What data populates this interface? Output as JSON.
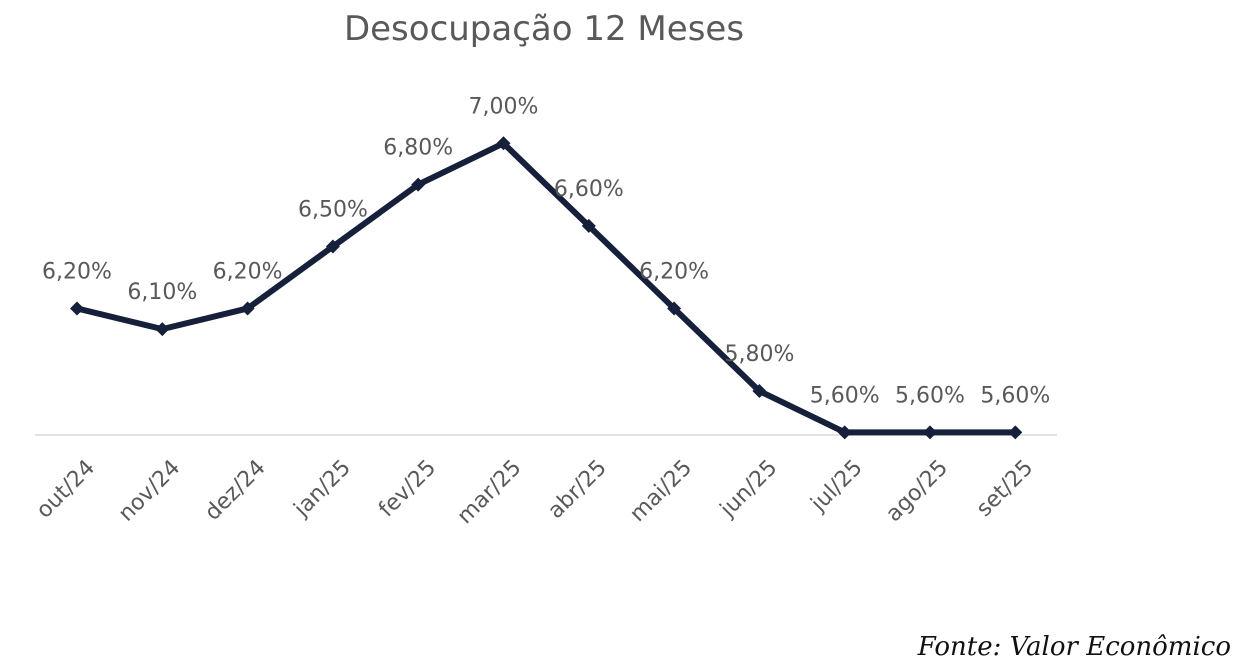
{
  "chart_data": {
    "type": "line",
    "title": "Desocupação 12 Meses",
    "xlabel": "",
    "ylabel": "",
    "categories": [
      "out/24",
      "nov/24",
      "dez/24",
      "jan/25",
      "fev/25",
      "mar/25",
      "abr/25",
      "mai/25",
      "jun/25",
      "jul/25",
      "ago/25",
      "set/25"
    ],
    "series": [
      {
        "values": [
          6.2,
          6.1,
          6.2,
          6.5,
          6.8,
          7.0,
          6.6,
          6.2,
          5.8,
          5.6,
          5.6,
          5.6
        ],
        "labels": [
          "6,20%",
          "6,10%",
          "6,20%",
          "6,50%",
          "6,80%",
          "7,00%",
          "6,60%",
          "6,20%",
          "5,80%",
          "5,60%",
          "5,60%",
          "5,60%"
        ]
      }
    ],
    "ylim": [
      5.5,
      7.2
    ],
    "grid": false,
    "legend": "none",
    "marker": "diamond",
    "colors": {
      "line": "#16203a",
      "axis": "#d9d9d9",
      "text": "#595959"
    }
  },
  "source": "Fonte: Valor Econômico"
}
